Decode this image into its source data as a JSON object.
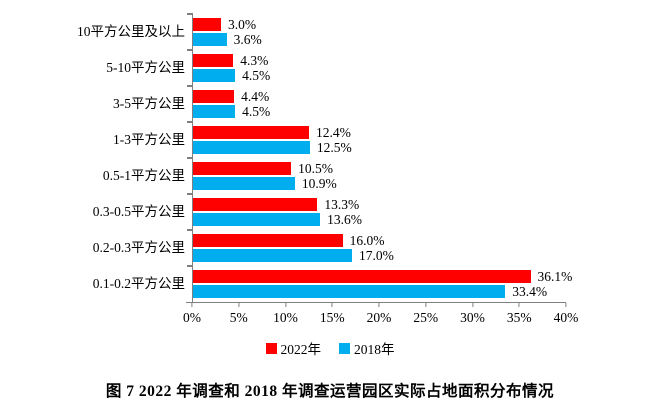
{
  "chart_data": {
    "type": "bar",
    "orientation": "horizontal",
    "title": "图 7  2022 年调查和 2018 年调查运营园区实际占地面积分布情况",
    "categories": [
      "10平方公里及以上",
      "5-10平方公里",
      "3-5平方公里",
      "1-3平方公里",
      "0.5-1平方公里",
      "0.3-0.5平方公里",
      "0.2-0.3平方公里",
      "0.1-0.2平方公里"
    ],
    "series": [
      {
        "name": "2022年",
        "color": "#ff0000",
        "values": [
          3.0,
          4.3,
          4.4,
          12.4,
          10.5,
          13.3,
          16.0,
          36.1
        ],
        "labels": [
          "3.0%",
          "4.3%",
          "4.4%",
          "12.4%",
          "10.5%",
          "13.3%",
          "16.0%",
          "36.1%"
        ]
      },
      {
        "name": "2018年",
        "color": "#00aeef",
        "values": [
          3.6,
          4.5,
          4.5,
          12.5,
          10.9,
          13.6,
          17.0,
          33.4
        ],
        "labels": [
          "3.6%",
          "4.5%",
          "4.5%",
          "12.5%",
          "10.9%",
          "13.6%",
          "17.0%",
          "33.4%"
        ]
      }
    ],
    "xlim": [
      0,
      40
    ],
    "x_ticks": [
      "0%",
      "5%",
      "10%",
      "15%",
      "20%",
      "25%",
      "30%",
      "35%",
      "40%"
    ],
    "legend_position": "bottom",
    "grid": false,
    "axis_color": "#808080"
  }
}
